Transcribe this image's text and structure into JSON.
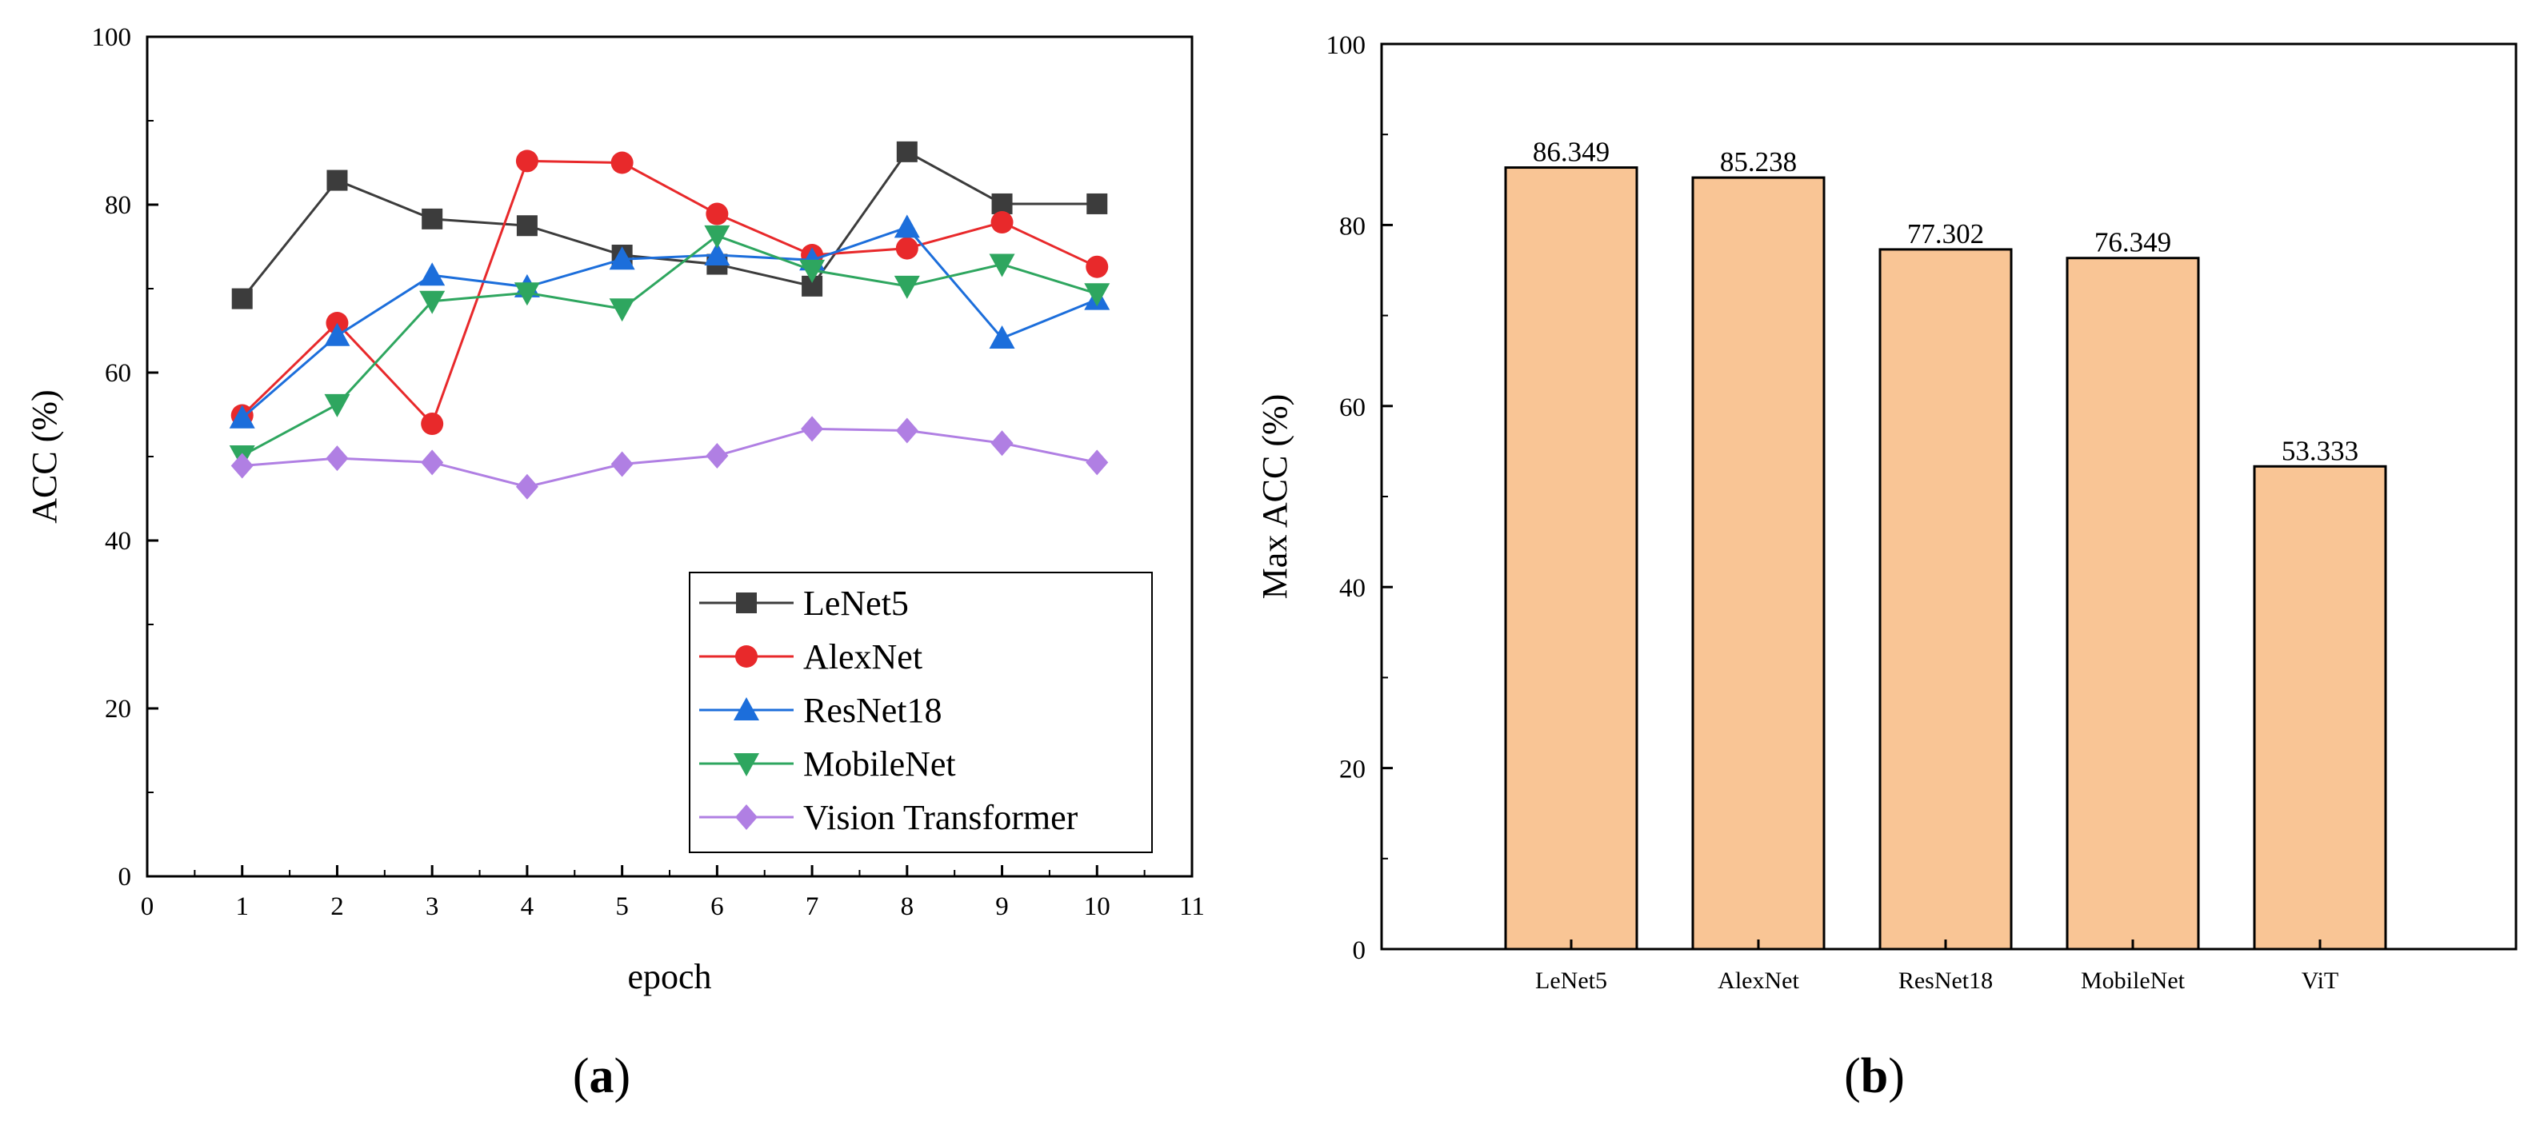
{
  "chart_data": [
    {
      "type": "line",
      "caption": "a",
      "xlabel": "epoch",
      "ylabel": "ACC (%)",
      "xlim": [
        0,
        11
      ],
      "ylim": [
        0,
        100
      ],
      "xticks": [
        "0",
        "1",
        "2",
        "3",
        "4",
        "5",
        "6",
        "7",
        "8",
        "9",
        "10",
        "11"
      ],
      "yticks": [
        "0",
        "20",
        "40",
        "60",
        "80",
        "100"
      ],
      "legend_position": "bottom-right",
      "x": [
        1,
        2,
        3,
        4,
        5,
        6,
        7,
        8,
        9,
        10
      ],
      "series": [
        {
          "name": "LeNet5",
          "color": "#3c3c3c",
          "marker": "square",
          "values": [
            68.8,
            82.9,
            78.3,
            77.5,
            74.0,
            72.9,
            70.3,
            86.3,
            80.1,
            80.1
          ]
        },
        {
          "name": "AlexNet",
          "color": "#e8292b",
          "marker": "circle",
          "values": [
            54.9,
            65.9,
            53.9,
            85.2,
            85.0,
            78.9,
            74.0,
            74.8,
            77.9,
            72.6
          ]
        },
        {
          "name": "ResNet18",
          "color": "#1c6edb",
          "marker": "triangle-up",
          "values": [
            54.6,
            64.4,
            71.6,
            70.2,
            73.5,
            74.0,
            73.4,
            77.3,
            64.1,
            68.7
          ]
        },
        {
          "name": "MobileNet",
          "color": "#2ea65f",
          "marker": "triangle-down",
          "values": [
            50.1,
            56.2,
            68.5,
            69.5,
            67.6,
            76.3,
            72.2,
            70.3,
            72.9,
            69.4
          ]
        },
        {
          "name": "Vision Transformer",
          "color": "#b07fe3",
          "marker": "diamond",
          "values": [
            48.9,
            49.8,
            49.3,
            46.4,
            49.1,
            50.1,
            53.3,
            53.1,
            51.6,
            49.3
          ]
        }
      ]
    },
    {
      "type": "bar",
      "caption": "b",
      "xlabel": "",
      "ylabel": "Max ACC (%)",
      "ylim": [
        0,
        100
      ],
      "yticks": [
        "0",
        "20",
        "40",
        "60",
        "80",
        "100"
      ],
      "categories": [
        "LeNet5",
        "AlexNet",
        "ResNet18",
        "MobileNet",
        "ViT"
      ],
      "values": [
        86.349,
        85.238,
        77.302,
        76.349,
        53.333
      ],
      "value_labels": [
        "86.349",
        "85.238",
        "77.302",
        "76.349",
        "53.333"
      ],
      "bar_color": "#f9c595",
      "edge_color": "#000000"
    }
  ]
}
